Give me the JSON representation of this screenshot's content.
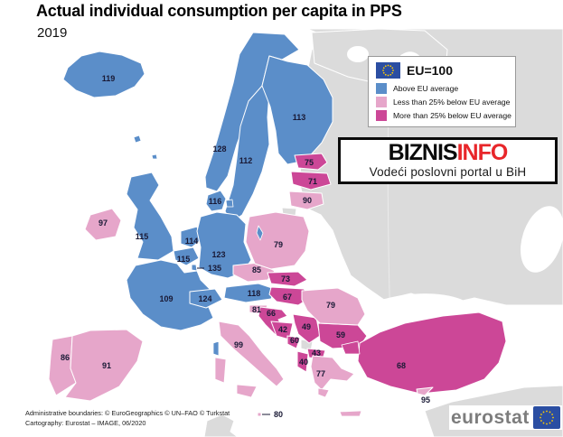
{
  "title": "Actual individual consumption per capita in PPS",
  "subtitle": "2019",
  "legend": {
    "eu_label": "EU=100",
    "items": [
      {
        "key": "above",
        "label": "Above EU average",
        "color": "#5B8EC9"
      },
      {
        "key": "below25",
        "label": "Less than 25% below EU average",
        "color": "#E6A6CA"
      },
      {
        "key": "more25",
        "label": "More than 25% below EU average",
        "color": "#CC4797"
      }
    ]
  },
  "watermark": {
    "brand_primary": "BIZNIS",
    "brand_secondary": "INFO",
    "tagline": "Vodeći poslovni portal u BiH"
  },
  "footer": {
    "line1": "Administrative boundaries: © EuroGeographics © UN–FAO © Turkstat",
    "line2": "Cartography: Eurostat – IMAGE, 06/2020"
  },
  "logo": {
    "text": "eurostat"
  },
  "chart_data": {
    "type": "choropleth-map",
    "title": "Actual individual consumption per capita in PPS",
    "year": "2019",
    "index_base": "EU=100",
    "categories": {
      "above": "Above EU average",
      "below25": "Less than 25% below EU average",
      "more25": "More than 25% below EU average"
    },
    "countries": [
      {
        "id": "IS",
        "name": "Iceland",
        "value": 119,
        "category": "above"
      },
      {
        "id": "NO",
        "name": "Norway",
        "value": 128,
        "category": "above"
      },
      {
        "id": "SE",
        "name": "Sweden",
        "value": 112,
        "category": "above"
      },
      {
        "id": "FI",
        "name": "Finland",
        "value": 113,
        "category": "above"
      },
      {
        "id": "DK",
        "name": "Denmark",
        "value": 116,
        "category": "above"
      },
      {
        "id": "UK",
        "name": "United Kingdom",
        "value": 115,
        "category": "above"
      },
      {
        "id": "IE",
        "name": "Ireland",
        "value": 97,
        "category": "below25"
      },
      {
        "id": "NL",
        "name": "Netherlands",
        "value": 114,
        "category": "above"
      },
      {
        "id": "BE",
        "name": "Belgium",
        "value": 115,
        "category": "above"
      },
      {
        "id": "LU",
        "name": "Luxembourg",
        "value": 135,
        "category": "above"
      },
      {
        "id": "DE",
        "name": "Germany",
        "value": 123,
        "category": "above"
      },
      {
        "id": "FR",
        "name": "France",
        "value": 109,
        "category": "above"
      },
      {
        "id": "CH",
        "name": "Switzerland",
        "value": 124,
        "category": "above"
      },
      {
        "id": "AT",
        "name": "Austria",
        "value": 118,
        "category": "above"
      },
      {
        "id": "PT",
        "name": "Portugal",
        "value": 86,
        "category": "below25"
      },
      {
        "id": "ES",
        "name": "Spain",
        "value": 91,
        "category": "below25"
      },
      {
        "id": "IT",
        "name": "Italy",
        "value": 99,
        "category": "below25"
      },
      {
        "id": "CZ",
        "name": "Czechia",
        "value": 85,
        "category": "below25"
      },
      {
        "id": "PL",
        "name": "Poland",
        "value": 79,
        "category": "below25"
      },
      {
        "id": "EE",
        "name": "Estonia",
        "value": 75,
        "category": "more25"
      },
      {
        "id": "LV",
        "name": "Latvia",
        "value": 71,
        "category": "more25"
      },
      {
        "id": "LT",
        "name": "Lithuania",
        "value": 90,
        "category": "below25"
      },
      {
        "id": "SK",
        "name": "Slovakia",
        "value": 73,
        "category": "more25"
      },
      {
        "id": "HU",
        "name": "Hungary",
        "value": 67,
        "category": "more25"
      },
      {
        "id": "SI",
        "name": "Slovenia",
        "value": 81,
        "category": "below25"
      },
      {
        "id": "HR",
        "name": "Croatia",
        "value": 66,
        "category": "more25"
      },
      {
        "id": "BA",
        "name": "Bosnia and Herzegovina",
        "value": 42,
        "category": "more25"
      },
      {
        "id": "RS",
        "name": "Serbia",
        "value": 49,
        "category": "more25"
      },
      {
        "id": "ME",
        "name": "Montenegro",
        "value": 60,
        "category": "more25"
      },
      {
        "id": "MK",
        "name": "North Macedonia",
        "value": 43,
        "category": "more25"
      },
      {
        "id": "AL",
        "name": "Albania",
        "value": 40,
        "category": "more25"
      },
      {
        "id": "BG",
        "name": "Bulgaria",
        "value": 59,
        "category": "more25"
      },
      {
        "id": "RO",
        "name": "Romania",
        "value": 79,
        "category": "below25"
      },
      {
        "id": "EL",
        "name": "Greece",
        "value": 77,
        "category": "below25"
      },
      {
        "id": "TR",
        "name": "Turkey",
        "value": 68,
        "category": "more25"
      },
      {
        "id": "CY",
        "name": "Cyprus",
        "value": 95,
        "category": "below25"
      },
      {
        "id": "MT",
        "name": "Malta",
        "value": 80,
        "category": "below25"
      }
    ],
    "no_data_color": "#DBDBDB",
    "sea_color": "#FFFFFF",
    "label_color": "#191935"
  }
}
